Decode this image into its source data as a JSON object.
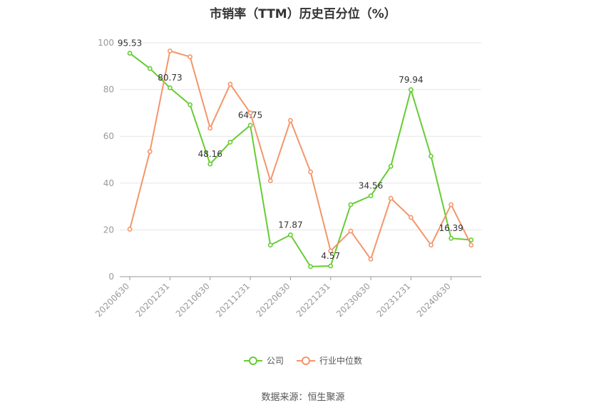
{
  "chart_data": {
    "type": "line",
    "title": "市销率（TTM）历史百分位（%）",
    "source": "数据来源：恒生聚源",
    "ylim": [
      0,
      100
    ],
    "yticks": [
      0,
      20,
      40,
      60,
      80,
      100
    ],
    "x_tick_labels": [
      "20200630",
      "20201231",
      "20210630",
      "20211231",
      "20220630",
      "20221231",
      "20230630",
      "20231231",
      "20240630"
    ],
    "series": [
      {
        "name": "公司",
        "color": "#66cc33",
        "values": [
          95.53,
          89,
          80.73,
          73.5,
          48.16,
          57.5,
          64.75,
          13.5,
          17.87,
          4.3,
          4.57,
          30.8,
          34.56,
          47.2,
          79.94,
          51.5,
          16.39,
          15.7
        ],
        "labels": {
          "0": "95.53",
          "2": "80.73",
          "4": "48.16",
          "6": "64.75",
          "8": "17.87",
          "10": "4.57",
          "12": "34.56",
          "14": "79.94",
          "16": "16.39"
        }
      },
      {
        "name": "行业中位数",
        "color": "#f4956a",
        "values": [
          20.3,
          53.5,
          96.5,
          94,
          63.5,
          82.3,
          70,
          41,
          66.8,
          44.8,
          11,
          19.5,
          7.5,
          33.5,
          25.3,
          13.5,
          30.8,
          13.5
        ]
      }
    ]
  }
}
